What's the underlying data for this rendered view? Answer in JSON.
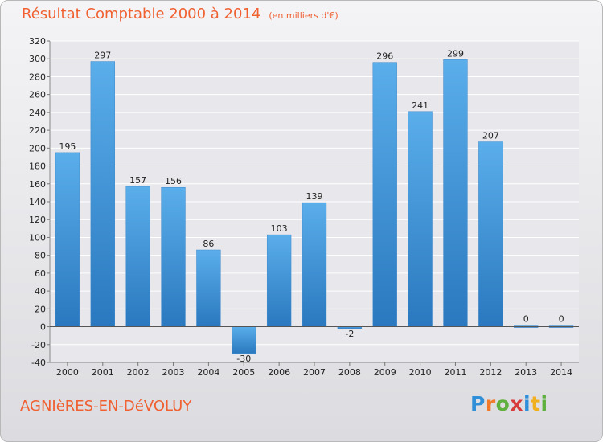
{
  "header": {
    "title": "Résultat Comptable 2000 à 2014",
    "subtitle": "(en milliers d'€)"
  },
  "footer": {
    "town": "AGNIèRES-EN-DéVOLUY",
    "logo_text": "Proxiti",
    "logo_colors": [
      "#2f8fd8",
      "#f07a2a",
      "#60b040",
      "#d83a3a",
      "#2f8fd8",
      "#f0b020",
      "#60b040"
    ]
  },
  "colors": {
    "bar_light": "#5aaeea",
    "bar_dark": "#2a78bf",
    "grid": "#ffffff",
    "zero_line": "#555555"
  },
  "chart_data": {
    "type": "bar",
    "title": "Résultat Comptable 2000 à 2014",
    "subtitle": "(en milliers d'€)",
    "categories": [
      "2000",
      "2001",
      "2002",
      "2003",
      "2004",
      "2005",
      "2006",
      "2007",
      "2008",
      "2009",
      "2010",
      "2011",
      "2012",
      "2013",
      "2014"
    ],
    "values": [
      195,
      297,
      157,
      156,
      86,
      -30,
      103,
      139,
      -2,
      296,
      241,
      299,
      207,
      0,
      0
    ],
    "ylim": [
      -40,
      320
    ],
    "yticks": [
      -40,
      -20,
      0,
      20,
      40,
      60,
      80,
      100,
      120,
      140,
      160,
      180,
      200,
      220,
      240,
      260,
      280,
      300,
      320
    ],
    "grid": true,
    "xlabel": "",
    "ylabel": ""
  }
}
